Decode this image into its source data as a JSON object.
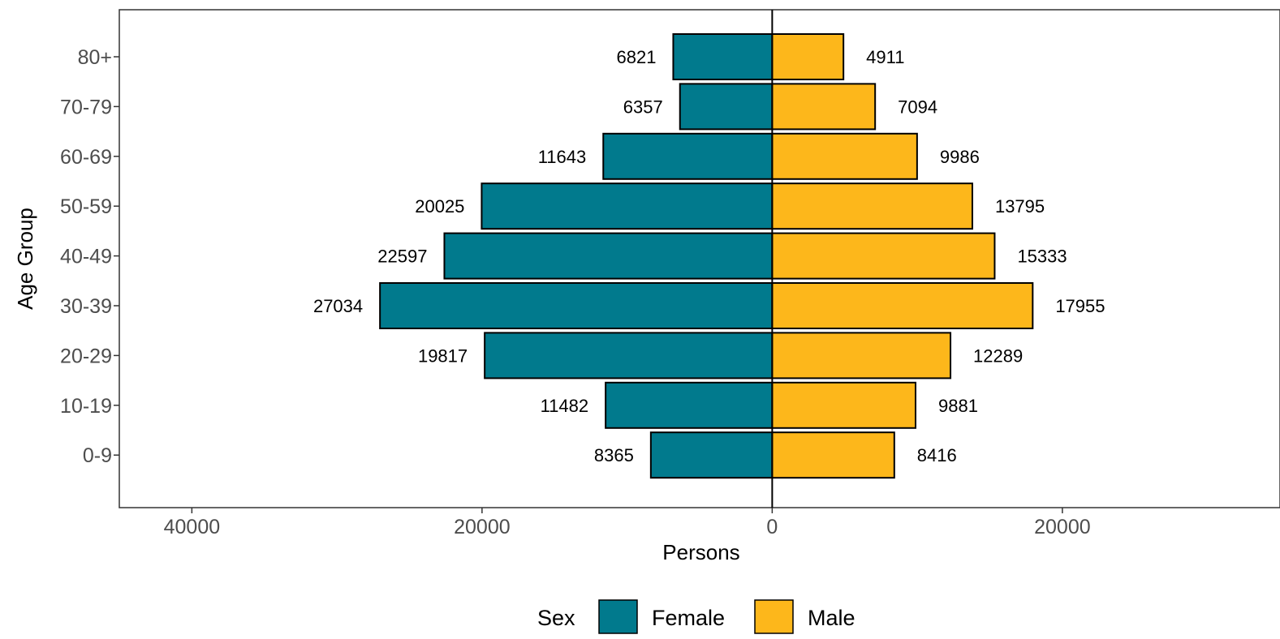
{
  "chart_data": {
    "type": "bar",
    "orientation": "horizontal",
    "layout": "population-pyramid",
    "categories": [
      "0-9",
      "10-19",
      "20-29",
      "30-39",
      "40-49",
      "50-59",
      "60-69",
      "70-79",
      "80+"
    ],
    "series": [
      {
        "name": "Female",
        "color": "#017A8D",
        "side": "left",
        "values": [
          8365,
          11482,
          19817,
          27034,
          22597,
          20025,
          11643,
          6357,
          6821
        ]
      },
      {
        "name": "Male",
        "color": "#FDB71B",
        "side": "right",
        "values": [
          8416,
          9881,
          12289,
          17955,
          15333,
          13795,
          9986,
          7094,
          4911
        ]
      }
    ],
    "xlabel": "Persons",
    "ylabel": "Age Group",
    "x_ticks": [
      {
        "value": -40000,
        "label": "40000"
      },
      {
        "value": -20000,
        "label": "20000"
      },
      {
        "value": 0,
        "label": "0"
      },
      {
        "value": 20000,
        "label": "20000"
      }
    ],
    "xlim": [
      -45000,
      35000
    ],
    "legend": {
      "title": "Sex",
      "position": "bottom"
    },
    "grid": false,
    "data_labels": true
  }
}
